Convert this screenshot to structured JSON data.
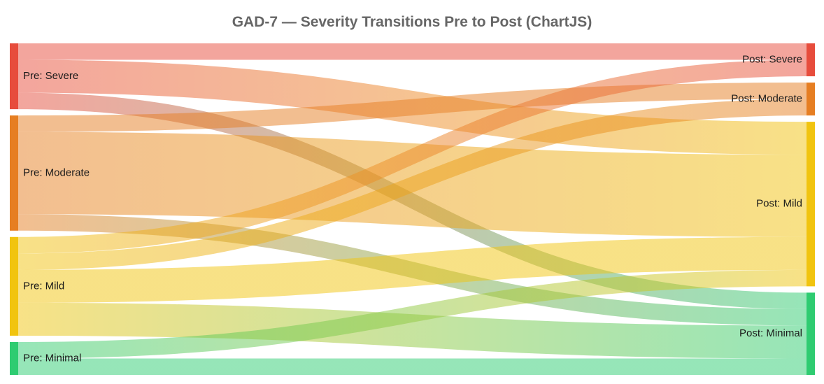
{
  "chart_data": {
    "type": "sankey",
    "title": "GAD-7 — Severity Transitions Pre to Post (ChartJS)",
    "nodes_left": [
      {
        "id": "pre_severe",
        "label": "Pre: Severe",
        "color": "#e74c3c"
      },
      {
        "id": "pre_moderate",
        "label": "Pre: Moderate",
        "color": "#e67e22"
      },
      {
        "id": "pre_mild",
        "label": "Pre: Mild",
        "color": "#f1c40f"
      },
      {
        "id": "pre_minimal",
        "label": "Pre: Minimal",
        "color": "#2ecc71"
      }
    ],
    "nodes_right": [
      {
        "id": "post_severe",
        "label": "Post: Severe",
        "color": "#e74c3c"
      },
      {
        "id": "post_moderate",
        "label": "Post: Moderate",
        "color": "#e67e22"
      },
      {
        "id": "post_mild",
        "label": "Post: Mild",
        "color": "#f1c40f"
      },
      {
        "id": "post_minimal",
        "label": "Post: Minimal",
        "color": "#2ecc71"
      }
    ],
    "flows": [
      {
        "from": "pre_severe",
        "to": "post_severe",
        "value": 4
      },
      {
        "from": "pre_severe",
        "to": "post_mild",
        "value": 8
      },
      {
        "from": "pre_severe",
        "to": "post_minimal",
        "value": 4
      },
      {
        "from": "pre_moderate",
        "to": "post_moderate",
        "value": 4
      },
      {
        "from": "pre_moderate",
        "to": "post_mild",
        "value": 20
      },
      {
        "from": "pre_moderate",
        "to": "post_minimal",
        "value": 4
      },
      {
        "from": "pre_mild",
        "to": "post_severe",
        "value": 4
      },
      {
        "from": "pre_mild",
        "to": "post_moderate",
        "value": 4
      },
      {
        "from": "pre_mild",
        "to": "post_mild",
        "value": 8
      },
      {
        "from": "pre_mild",
        "to": "post_minimal",
        "value": 8
      },
      {
        "from": "pre_minimal",
        "to": "post_mild",
        "value": 4
      },
      {
        "from": "pre_minimal",
        "to": "post_minimal",
        "value": 4
      }
    ]
  }
}
